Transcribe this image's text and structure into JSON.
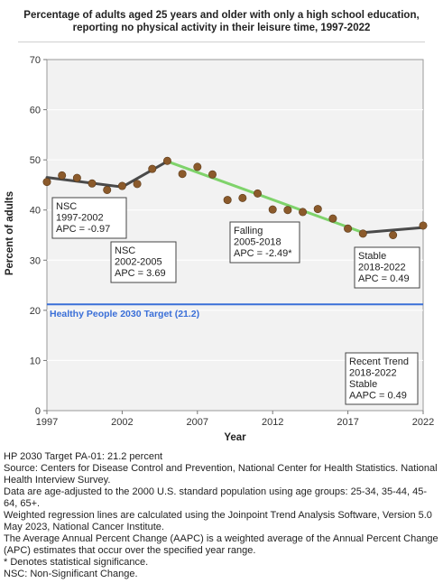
{
  "title": "Percentage of adults aged 25 years and older with only a high school education, reporting no physical activity in their leisure time, 1997-2022",
  "colors": {
    "plot_bg": "#f2f2f2",
    "trend_nsc": "#4a4a4a",
    "trend_falling": "#7fd36b",
    "trend_stable": "#4a4a4a",
    "point": "#8b5a2b",
    "target": "#3a6fd8"
  },
  "chart_data": {
    "type": "line",
    "xlabel": "Year",
    "ylabel": "Percent of adults",
    "xlim": [
      1997,
      2022
    ],
    "ylim": [
      0,
      70
    ],
    "x_ticks": [
      1997,
      2002,
      2007,
      2012,
      2017,
      2022
    ],
    "y_ticks": [
      0,
      10,
      20,
      30,
      40,
      50,
      60,
      70
    ],
    "grid": true,
    "points": [
      {
        "x": 1997,
        "y": 45.6
      },
      {
        "x": 1998,
        "y": 46.9
      },
      {
        "x": 1999,
        "y": 46.4
      },
      {
        "x": 2000,
        "y": 45.3
      },
      {
        "x": 2001,
        "y": 44.0
      },
      {
        "x": 2002,
        "y": 44.8
      },
      {
        "x": 2003,
        "y": 45.2
      },
      {
        "x": 2004,
        "y": 48.2
      },
      {
        "x": 2005,
        "y": 49.8
      },
      {
        "x": 2006,
        "y": 47.2
      },
      {
        "x": 2007,
        "y": 48.6
      },
      {
        "x": 2008,
        "y": 47.1
      },
      {
        "x": 2009,
        "y": 42.0
      },
      {
        "x": 2010,
        "y": 42.4
      },
      {
        "x": 2011,
        "y": 43.3
      },
      {
        "x": 2012,
        "y": 40.1
      },
      {
        "x": 2013,
        "y": 40.0
      },
      {
        "x": 2014,
        "y": 39.6
      },
      {
        "x": 2015,
        "y": 40.2
      },
      {
        "x": 2016,
        "y": 38.3
      },
      {
        "x": 2017,
        "y": 36.3
      },
      {
        "x": 2018,
        "y": 35.3
      },
      {
        "x": 2020,
        "y": 35.0
      },
      {
        "x": 2022,
        "y": 36.9
      }
    ],
    "segments": [
      {
        "x": [
          1997,
          2002
        ],
        "y": [
          46.5,
          44.6
        ],
        "style": "nsc"
      },
      {
        "x": [
          2002,
          2005
        ],
        "y": [
          44.6,
          49.7
        ],
        "style": "nsc"
      },
      {
        "x": [
          2005,
          2018
        ],
        "y": [
          49.7,
          35.5
        ],
        "style": "falling"
      },
      {
        "x": [
          2018,
          2022
        ],
        "y": [
          35.5,
          36.5
        ],
        "style": "stable"
      }
    ],
    "target": {
      "value": 21.2,
      "label": "Healthy People 2030 Target (21.2)"
    },
    "annotations": [
      {
        "lines": [
          "NSC",
          "1997-2002",
          "APC = -0.97"
        ]
      },
      {
        "lines": [
          "NSC",
          "2002-2005",
          "APC =  3.69"
        ]
      },
      {
        "lines": [
          "Falling",
          "2005-2018",
          "APC = -2.49*"
        ]
      },
      {
        "lines": [
          "Stable",
          "2018-2022",
          "APC =  0.49"
        ]
      },
      {
        "lines": [
          "Recent Trend",
          "2018-2022",
          "Stable",
          "AAPC =  0.49"
        ]
      }
    ]
  },
  "notes": [
    "HP 2030 Target PA-01: 21.2 percent",
    "Source: Centers for Disease Control and Prevention, National Center for Health Statistics. National Health Interview Survey.",
    "Data are age-adjusted to the 2000 U.S. standard population using age groups: 25-34, 35-44, 45-64, 65+.",
    "Weighted regression lines are calculated using the Joinpoint Trend Analysis Software, Version 5.0 May 2023, National Cancer Institute.",
    "The Average Annual Percent Change (AAPC) is a weighted average of the Annual Percent Change (APC) estimates that occur over the specified year range.",
    "* Denotes statistical significance.",
    "NSC: Non-Significant Change."
  ]
}
